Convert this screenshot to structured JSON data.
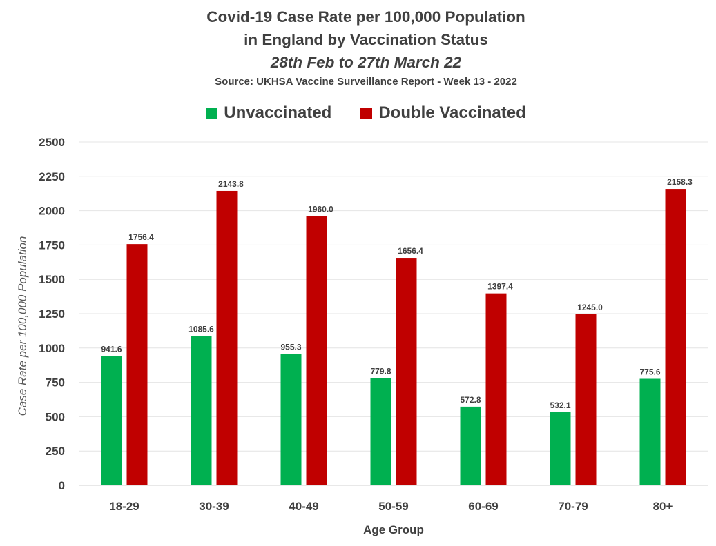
{
  "chart_data": {
    "type": "bar",
    "title_line1": "Covid-19 Case Rate per 100,000 Population",
    "title_line2": "in England by Vaccination Status",
    "subtitle": "28th Feb to 27th March 22",
    "source": "Source: UKHSA Vaccine Surveillance Report - Week 13 - 2022",
    "xlabel": "Age Group",
    "ylabel": "Case Rate per 100,000 Population",
    "ylim": [
      0,
      2500
    ],
    "yticks": [
      0,
      250,
      500,
      750,
      1000,
      1250,
      1500,
      1750,
      2000,
      2250,
      2500
    ],
    "grid": true,
    "legend_position": "top-center",
    "categories": [
      "18-29",
      "30-39",
      "40-49",
      "50-59",
      "60-69",
      "70-79",
      "80+"
    ],
    "series": [
      {
        "name": "Unvaccinated",
        "color": "#00b050",
        "values": [
          941.6,
          1085.6,
          955.3,
          779.8,
          572.8,
          532.1,
          775.6
        ],
        "labels": [
          "941.6",
          "1085.6",
          "955.3",
          "779.8",
          "572.8",
          "532.1",
          "775.6"
        ]
      },
      {
        "name": "Double Vaccinated",
        "color": "#c00000",
        "values": [
          1756.4,
          2143.8,
          1960.0,
          1656.4,
          1397.4,
          1245.0,
          2158.3
        ],
        "labels": [
          "1756.4",
          "2143.8",
          "1960.0",
          "1656.4",
          "1397.4",
          "1245.0",
          "2158.3"
        ]
      }
    ]
  }
}
